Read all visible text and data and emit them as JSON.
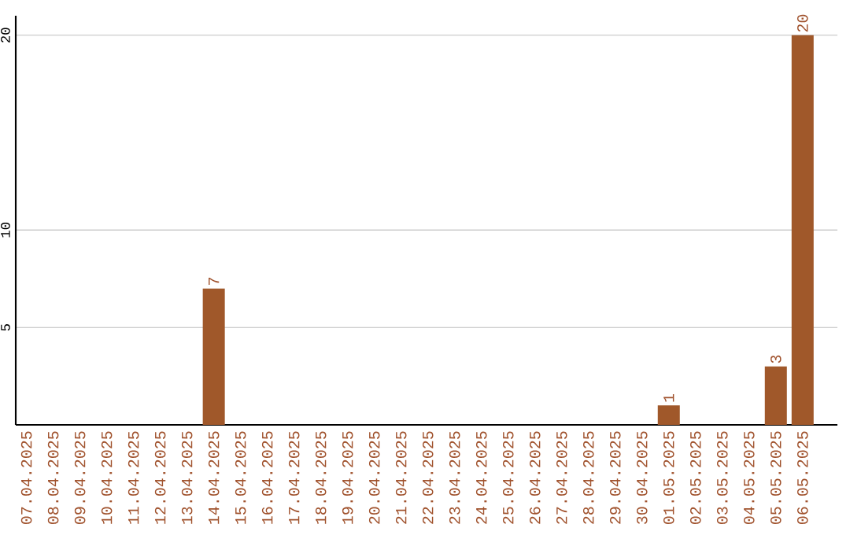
{
  "chart_data": {
    "type": "bar",
    "categories": [
      "07.04.2025",
      "08.04.2025",
      "09.04.2025",
      "10.04.2025",
      "11.04.2025",
      "12.04.2025",
      "13.04.2025",
      "14.04.2025",
      "15.04.2025",
      "16.04.2025",
      "17.04.2025",
      "18.04.2025",
      "19.04.2025",
      "20.04.2025",
      "21.04.2025",
      "22.04.2025",
      "23.04.2025",
      "24.04.2025",
      "25.04.2025",
      "26.04.2025",
      "27.04.2025",
      "28.04.2025",
      "29.04.2025",
      "30.04.2025",
      "01.05.2025",
      "02.05.2025",
      "03.05.2025",
      "04.05.2025",
      "05.05.2025",
      "06.05.2025"
    ],
    "values": [
      0,
      0,
      0,
      0,
      0,
      0,
      0,
      7,
      0,
      0,
      0,
      0,
      0,
      0,
      0,
      0,
      0,
      0,
      0,
      0,
      0,
      0,
      0,
      0,
      1,
      0,
      0,
      0,
      3,
      20
    ],
    "value_labels": [
      null,
      null,
      null,
      null,
      null,
      null,
      null,
      "7",
      null,
      null,
      null,
      null,
      null,
      null,
      null,
      null,
      null,
      null,
      null,
      null,
      null,
      null,
      null,
      null,
      "1",
      null,
      null,
      null,
      "3",
      "20"
    ],
    "color": "#a0582a",
    "ylim": [
      0,
      21
    ],
    "yticks": [
      5,
      10,
      20
    ],
    "grid": "y"
  }
}
